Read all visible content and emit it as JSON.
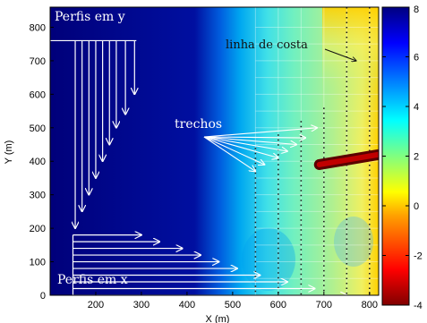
{
  "chart_data": {
    "type": "heatmap",
    "xlabel": "X (m)",
    "ylabel": "Y (m)",
    "xlim": [
      100,
      820
    ],
    "ylim": [
      0,
      860
    ],
    "xticks": [
      200,
      300,
      400,
      500,
      600,
      700,
      800
    ],
    "yticks": [
      0,
      100,
      200,
      300,
      400,
      500,
      600,
      700,
      800
    ],
    "colorbar": {
      "range": [
        -4,
        8
      ],
      "ticks": [
        -4,
        -2,
        0,
        2,
        4,
        6,
        8
      ],
      "colormap": "jet"
    },
    "grid": true,
    "grid_x": [
      550,
      600,
      650,
      700,
      750,
      800
    ],
    "grid_y": [
      0,
      50,
      100,
      150,
      200,
      250,
      300,
      350,
      400,
      450,
      500,
      550,
      600,
      650,
      700,
      750,
      800
    ],
    "annotations": {
      "perfis_y": "Perfis em y",
      "perfis_x": "Perfis em x",
      "trechos": "trechos",
      "linha_costa": "linha de costa"
    },
    "measurement_lines_x": [
      550,
      600,
      650,
      700,
      750,
      800
    ],
    "structure": {
      "x_start": 690,
      "y_start": 390,
      "x_end": 820,
      "y_end": 420
    },
    "profiles_y": {
      "x": [
        155,
        170,
        185,
        200,
        215,
        230,
        245,
        265,
        285
      ],
      "y_top": 760,
      "y_bottom": [
        200,
        250,
        300,
        350,
        400,
        450,
        500,
        540,
        600
      ]
    },
    "profiles_x": {
      "x_start": 150,
      "y": [
        180,
        160,
        140,
        120,
        100,
        80,
        60,
        40,
        20,
        0
      ],
      "x_end": [
        300,
        340,
        390,
        430,
        470,
        510,
        560,
        620,
        680,
        750
      ]
    }
  }
}
